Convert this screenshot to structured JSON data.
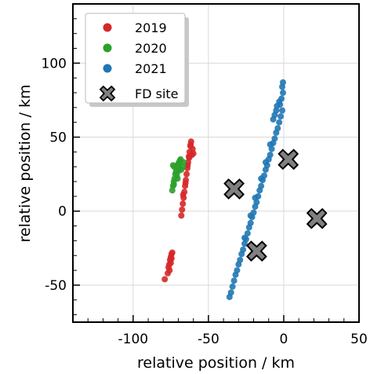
{
  "chart_data": {
    "type": "scatter",
    "xlabel": "relative position / km",
    "ylabel": "relative position / km",
    "xlim": [
      -140,
      50
    ],
    "ylim": [
      -75,
      140
    ],
    "xticks": [
      -100,
      -50,
      0,
      50
    ],
    "yticks": [
      -50,
      0,
      50,
      100
    ],
    "grid": true,
    "legend_position": "top-left",
    "series": [
      {
        "name": "2019",
        "color": "#d62728",
        "marker": "dot",
        "points": [
          [
            -79,
            -46
          ],
          [
            -77,
            -42
          ],
          [
            -76.5,
            -38
          ],
          [
            -76,
            -36
          ],
          [
            -75.5,
            -33
          ],
          [
            -75,
            -31
          ],
          [
            -74.5,
            -29
          ],
          [
            -74,
            -28
          ],
          [
            -75,
            -35
          ],
          [
            -74.5,
            -32
          ],
          [
            -75.8,
            -40
          ],
          [
            -68,
            -3
          ],
          [
            -67.5,
            1
          ],
          [
            -67,
            5
          ],
          [
            -66.5,
            9
          ],
          [
            -66,
            13
          ],
          [
            -65.5,
            17
          ],
          [
            -65,
            21
          ],
          [
            -64.5,
            25
          ],
          [
            -64,
            29
          ],
          [
            -63.5,
            33
          ],
          [
            -63,
            37
          ],
          [
            -62.5,
            40
          ],
          [
            -62,
            44
          ],
          [
            -61.5,
            47
          ],
          [
            -60.5,
            42
          ],
          [
            -61,
            38
          ],
          [
            -66.8,
            11
          ],
          [
            -65.2,
            19
          ],
          [
            -63.8,
            31
          ],
          [
            -62.8,
            36
          ],
          [
            -61.8,
            45
          ],
          [
            -60,
            39
          ]
        ]
      },
      {
        "name": "2020",
        "color": "#2ca02c",
        "marker": "dot",
        "points": [
          [
            -74,
            14
          ],
          [
            -73.5,
            17
          ],
          [
            -73,
            20
          ],
          [
            -72.5,
            22
          ],
          [
            -72,
            25
          ],
          [
            -71.5,
            27
          ],
          [
            -71,
            29
          ],
          [
            -70.5,
            31
          ],
          [
            -70,
            32
          ],
          [
            -69.5,
            33
          ],
          [
            -69,
            34
          ],
          [
            -68.5,
            35
          ],
          [
            -71,
            24
          ],
          [
            -70,
            27
          ],
          [
            -69,
            29
          ],
          [
            -72.8,
            30
          ],
          [
            -73.5,
            31
          ],
          [
            -67,
            30
          ],
          [
            -66.5,
            33
          ],
          [
            -68,
            28
          ],
          [
            -73,
            18
          ],
          [
            -70.5,
            22
          ]
        ]
      },
      {
        "name": "2021",
        "color": "#1f77b4",
        "marker": "dot",
        "points": [
          [
            -36,
            -58
          ],
          [
            -35,
            -55
          ],
          [
            -34,
            -51
          ],
          [
            -33,
            -47
          ],
          [
            -32,
            -43
          ],
          [
            -31,
            -40
          ],
          [
            -30,
            -36
          ],
          [
            -29,
            -33
          ],
          [
            -28,
            -29
          ],
          [
            -27,
            -26
          ],
          [
            -26,
            -22
          ],
          [
            -25,
            -19
          ],
          [
            -24,
            -15
          ],
          [
            -23,
            -11
          ],
          [
            -22,
            -8
          ],
          [
            -21,
            -4
          ],
          [
            -20,
            -1
          ],
          [
            -19,
            3
          ],
          [
            -18,
            6
          ],
          [
            -17,
            10
          ],
          [
            -16,
            14
          ],
          [
            -15,
            17
          ],
          [
            -14,
            21
          ],
          [
            -13,
            24
          ],
          [
            -12,
            28
          ],
          [
            -11,
            31
          ],
          [
            -10,
            35
          ],
          [
            -9,
            38
          ],
          [
            -8,
            42
          ],
          [
            -7,
            46
          ],
          [
            -6,
            49
          ],
          [
            -5,
            53
          ],
          [
            -4,
            56
          ],
          [
            -3,
            60
          ],
          [
            -2,
            64
          ],
          [
            -1,
            68
          ],
          [
            -2.5,
            72
          ],
          [
            -1.5,
            76
          ],
          [
            -0.5,
            80
          ],
          [
            -1,
            84
          ],
          [
            -0.5,
            87
          ],
          [
            -7,
            62
          ],
          [
            -6,
            65
          ],
          [
            -5,
            68
          ],
          [
            -4.5,
            71
          ],
          [
            -3,
            74
          ],
          [
            -26,
            -18
          ],
          [
            -22,
            -3
          ],
          [
            -19,
            9
          ],
          [
            -15,
            22
          ],
          [
            -12,
            33
          ],
          [
            -9,
            45
          ]
        ]
      },
      {
        "name": "FD site",
        "color": "#808080",
        "marker": "X",
        "points": [
          [
            -33,
            15
          ],
          [
            3,
            35
          ],
          [
            22,
            -5
          ],
          [
            -18,
            -27
          ]
        ]
      }
    ]
  }
}
